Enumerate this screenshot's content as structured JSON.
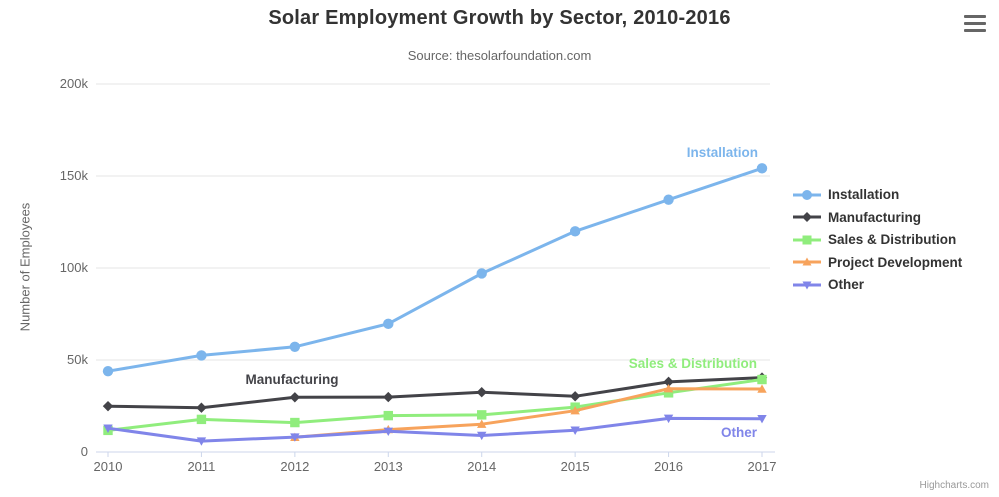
{
  "chart": {
    "title": "Solar Employment Growth by Sector, 2010-2016",
    "subtitle": "Source: thesolarfoundation.com",
    "y_axis_title": "Number of Employees",
    "credits": "Highcharts.com",
    "context_menu_icon": "hamburger-icon",
    "colors": {
      "title": "#333333",
      "subtitle": "#666666",
      "axis_labels": "#666666",
      "gridline": "#e6e6e6",
      "axis_line": "#ccd6eb",
      "legend_text": "#333333",
      "credits_text": "#999999"
    }
  },
  "chart_data": {
    "type": "line",
    "title": "Solar Employment Growth by Sector, 2010-2016",
    "subtitle": "Source: thesolarfoundation.com",
    "xlabel": "",
    "ylabel": "Number of Employees",
    "categories": [
      2010,
      2011,
      2012,
      2013,
      2014,
      2015,
      2016,
      2017
    ],
    "x_tick_labels": [
      "2010",
      "2011",
      "2012",
      "2013",
      "2014",
      "2015",
      "2016",
      "2017"
    ],
    "y_ticks": [
      0,
      50000,
      100000,
      150000,
      200000
    ],
    "y_tick_labels": [
      "0",
      "50k",
      "100k",
      "150k",
      "200k"
    ],
    "ylim": [
      0,
      200000
    ],
    "grid": true,
    "legend_position": "right",
    "series": [
      {
        "name": "Installation",
        "color": "#7cb5ec",
        "marker": "circle",
        "values": [
          43934,
          52503,
          57177,
          69658,
          97031,
          119931,
          137133,
          154175
        ],
        "inline_label": true
      },
      {
        "name": "Manufacturing",
        "color": "#434348",
        "marker": "diamond",
        "values": [
          24916,
          24064,
          29742,
          29851,
          32490,
          30282,
          38121,
          40434
        ],
        "inline_label": true
      },
      {
        "name": "Sales & Distribution",
        "color": "#90ed7d",
        "marker": "square",
        "values": [
          11744,
          17722,
          16005,
          19771,
          20185,
          24377,
          32147,
          39387
        ],
        "inline_label": true
      },
      {
        "name": "Project Development",
        "color": "#f7a35c",
        "marker": "triangle",
        "values": [
          null,
          null,
          7988,
          12169,
          15112,
          22452,
          34400,
          34227
        ],
        "inline_label": false
      },
      {
        "name": "Other",
        "color": "#8085e9",
        "marker": "triangle-down",
        "values": [
          12908,
          5948,
          8105,
          11248,
          8989,
          11816,
          18274,
          18111
        ],
        "inline_label": true
      }
    ]
  }
}
